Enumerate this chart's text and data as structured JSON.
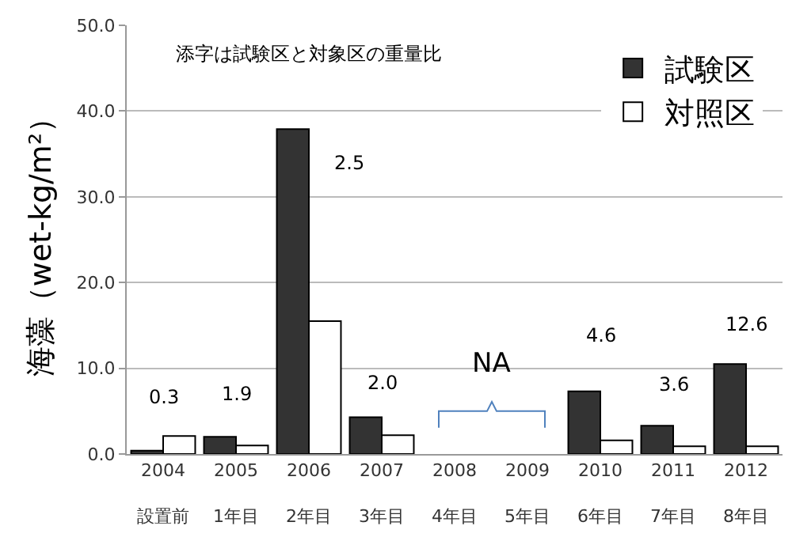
{
  "chart_data": {
    "type": "bar",
    "ylabel": "海藻（wet-kg/m²）",
    "categories": [
      "2004\n設置前",
      "2005\n1年目",
      "2006\n2年目",
      "2007\n3年目",
      "2008\n4年目",
      "2009\n5年目",
      "2010\n6年目",
      "2011\n7年目",
      "2012\n8年目"
    ],
    "series": [
      {
        "name": "試験区",
        "color": "#333333",
        "values": [
          0.4,
          2.0,
          37.9,
          4.3,
          null,
          null,
          7.3,
          3.3,
          10.5
        ]
      },
      {
        "name": "対照区",
        "color": "#ffffff",
        "values": [
          2.1,
          1.0,
          15.5,
          2.2,
          null,
          null,
          1.6,
          0.9,
          0.9
        ]
      }
    ],
    "annotations": [
      "添字は試験区と対象区の重量比",
      "NA",
      "0.3",
      "1.9",
      "2.5",
      "2.0",
      "4.6",
      "3.6",
      "12.6"
    ],
    "ylim": [
      0,
      50
    ],
    "yticks": [
      {
        "value": 0,
        "label": "0.0"
      },
      {
        "value": 10,
        "label": "10.0"
      },
      {
        "value": 20,
        "label": "20.0"
      },
      {
        "value": 30,
        "label": "30.0"
      },
      {
        "value": 40,
        "label": "40.0"
      },
      {
        "value": 50,
        "label": "50.0"
      }
    ],
    "grid": "y",
    "legend": "top right"
  }
}
